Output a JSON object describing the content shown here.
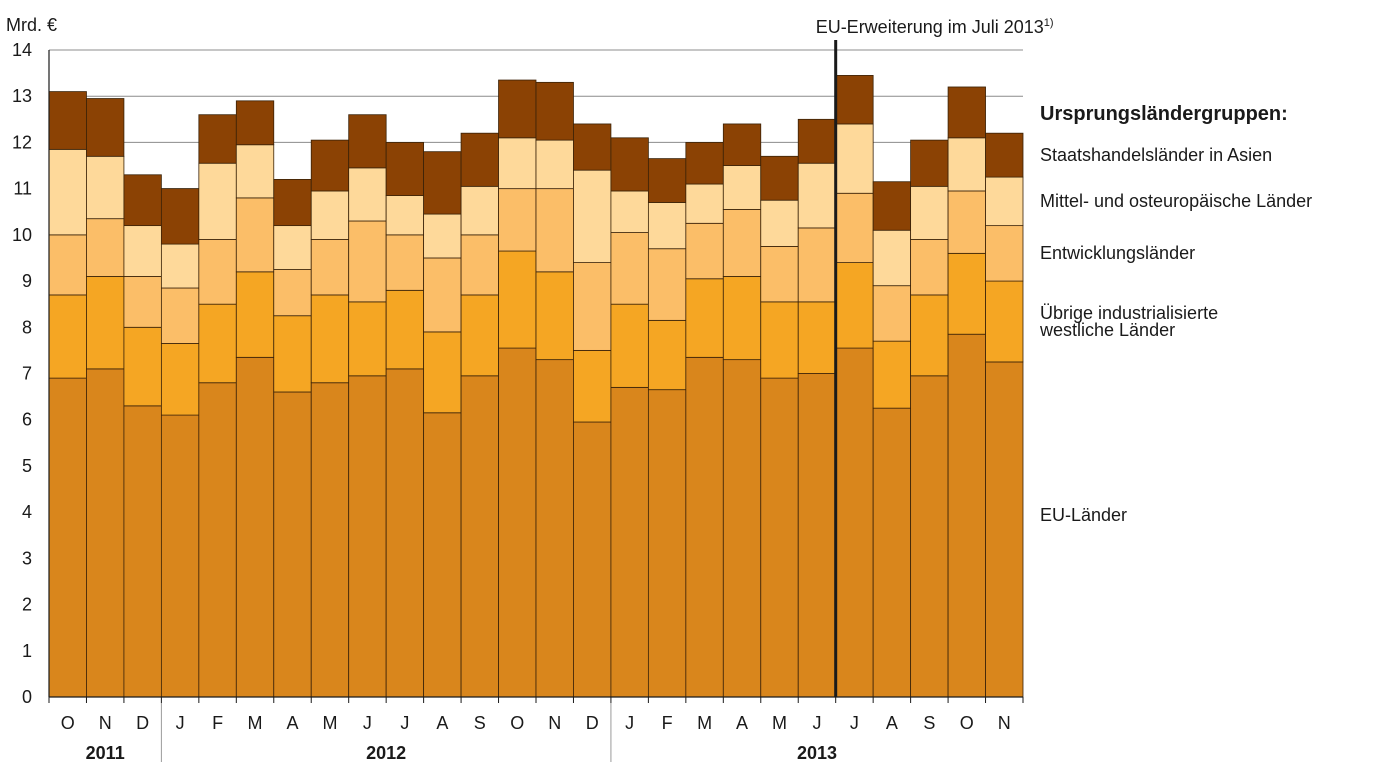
{
  "chart_data": {
    "type": "bar",
    "stacked": true,
    "y_unit_label": "Mrd. €",
    "ylim": [
      0,
      14
    ],
    "yticks": [
      0,
      1,
      2,
      3,
      4,
      5,
      6,
      7,
      8,
      9,
      10,
      11,
      12,
      13,
      14
    ],
    "grid": "horizontal",
    "categories": [
      "O",
      "N",
      "D",
      "J",
      "F",
      "M",
      "A",
      "M",
      "J",
      "J",
      "A",
      "S",
      "O",
      "N",
      "D",
      "J",
      "F",
      "M",
      "A",
      "M",
      "J",
      "J",
      "A",
      "S",
      "O",
      "N"
    ],
    "year_groups": [
      {
        "label": "2011",
        "start": 0,
        "end": 2
      },
      {
        "label": "2012",
        "start": 3,
        "end": 14
      },
      {
        "label": "2013",
        "start": 15,
        "end": 25
      }
    ],
    "annotation": {
      "text": "EU-Erweiterung im Juli 2013",
      "superscript": "1)",
      "after_index": 20
    },
    "legend_title": "Ursprungsländergruppen:",
    "series": [
      {
        "name": "EU-Länder",
        "color": "#d9861c",
        "values": [
          6.9,
          7.1,
          6.3,
          6.1,
          6.8,
          7.35,
          6.6,
          6.8,
          6.95,
          7.1,
          6.15,
          6.95,
          7.55,
          7.3,
          5.95,
          6.7,
          6.65,
          7.35,
          7.3,
          6.9,
          7.0,
          7.55,
          6.25,
          6.95,
          7.85,
          7.25
        ]
      },
      {
        "name": "Übrige industrialisierte westliche Länder",
        "color": "#f5a623",
        "values": [
          1.8,
          2.0,
          1.7,
          1.55,
          1.7,
          1.85,
          1.65,
          1.9,
          1.6,
          1.7,
          1.75,
          1.75,
          2.1,
          1.9,
          1.55,
          1.8,
          1.5,
          1.7,
          1.8,
          1.65,
          1.55,
          1.85,
          1.45,
          1.75,
          1.75,
          1.75
        ]
      },
      {
        "name": "Entwicklungsländer",
        "color": "#fbbe68",
        "values": [
          1.3,
          1.25,
          1.1,
          1.2,
          1.4,
          1.6,
          1.0,
          1.2,
          1.75,
          1.2,
          1.6,
          1.3,
          1.35,
          1.8,
          1.9,
          1.55,
          1.55,
          1.2,
          1.45,
          1.2,
          1.6,
          1.5,
          1.2,
          1.2,
          1.35,
          1.2
        ]
      },
      {
        "name": "Mittel- und osteuropäische Länder",
        "color": "#fed99a",
        "values": [
          1.85,
          1.35,
          1.1,
          0.95,
          1.65,
          1.15,
          0.95,
          1.05,
          1.15,
          0.85,
          0.95,
          1.05,
          1.1,
          1.05,
          2.0,
          0.9,
          1.0,
          0.85,
          0.95,
          1.0,
          1.4,
          1.5,
          1.2,
          1.15,
          1.15,
          1.05
        ]
      },
      {
        "name": "Staatshandelsländer in Asien",
        "color": "#8b4204",
        "values": [
          1.25,
          1.25,
          1.1,
          1.2,
          1.05,
          0.95,
          1.0,
          1.1,
          1.15,
          1.15,
          1.35,
          1.15,
          1.25,
          1.25,
          1.0,
          1.15,
          0.95,
          0.9,
          0.9,
          0.95,
          0.95,
          1.05,
          1.05,
          1.0,
          1.1,
          0.95
        ]
      }
    ],
    "legend_labels": [
      "Staatshandelsländer in Asien",
      "Mittel- und osteuropäische Länder",
      "Entwicklungsländer",
      "Übrige industrialisierte",
      "westliche Länder",
      "EU-Länder"
    ]
  }
}
